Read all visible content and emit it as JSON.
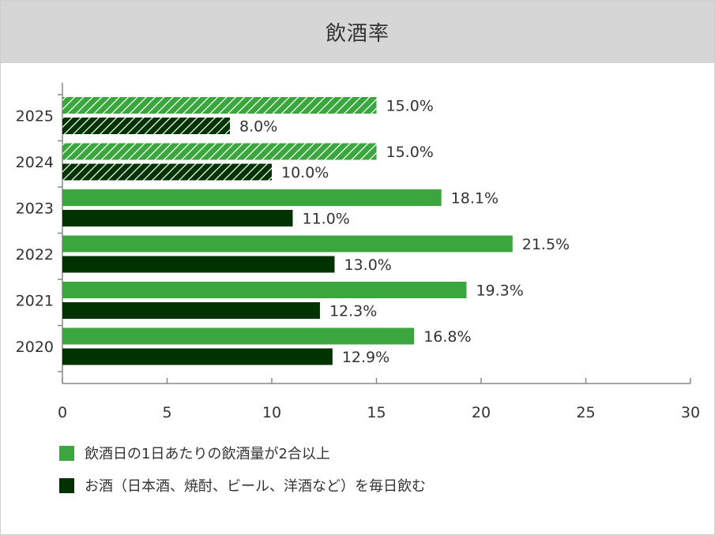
{
  "header": {
    "title": "飲酒率"
  },
  "colors": {
    "light_green": "#3aa63d",
    "dark_green": "#003300",
    "text": "#333333",
    "axis": "#888888"
  },
  "legend": [
    {
      "label": "飲酒日の1日あたりの飲酒量が2合以上",
      "color": "#3aa63d"
    },
    {
      "label": "お酒（日本酒、焼酎、ビール、洋酒など）を毎日飲む",
      "color": "#003300"
    }
  ],
  "chart_data": {
    "type": "bar",
    "orientation": "horizontal",
    "title": "飲酒率",
    "xlabel": "",
    "ylabel": "",
    "categories": [
      "2025",
      "2024",
      "2023",
      "2022",
      "2021",
      "2020"
    ],
    "xlim": [
      0,
      30
    ],
    "xticks": [
      0,
      5,
      10,
      15,
      20,
      25,
      30
    ],
    "series": [
      {
        "name": "飲酒日の1日あたりの飲酒量が2合以上",
        "color": "#3aa63d",
        "values": [
          15.0,
          15.0,
          18.1,
          21.5,
          19.3,
          16.8
        ],
        "labels": [
          "15.0%",
          "15.0%",
          "18.1%",
          "21.5%",
          "19.3%",
          "16.8%"
        ]
      },
      {
        "name": "お酒（日本酒、焼酎、ビール、洋酒など）を毎日飲む",
        "color": "#003300",
        "values": [
          8.0,
          10.0,
          11.0,
          13.0,
          12.3,
          12.9
        ],
        "labels": [
          "8.0%",
          "10.0%",
          "11.0%",
          "13.0%",
          "12.3%",
          "12.9%"
        ]
      }
    ],
    "hatched_categories": [
      "2025",
      "2024"
    ],
    "grid": false,
    "legend_position": "bottom-left"
  }
}
